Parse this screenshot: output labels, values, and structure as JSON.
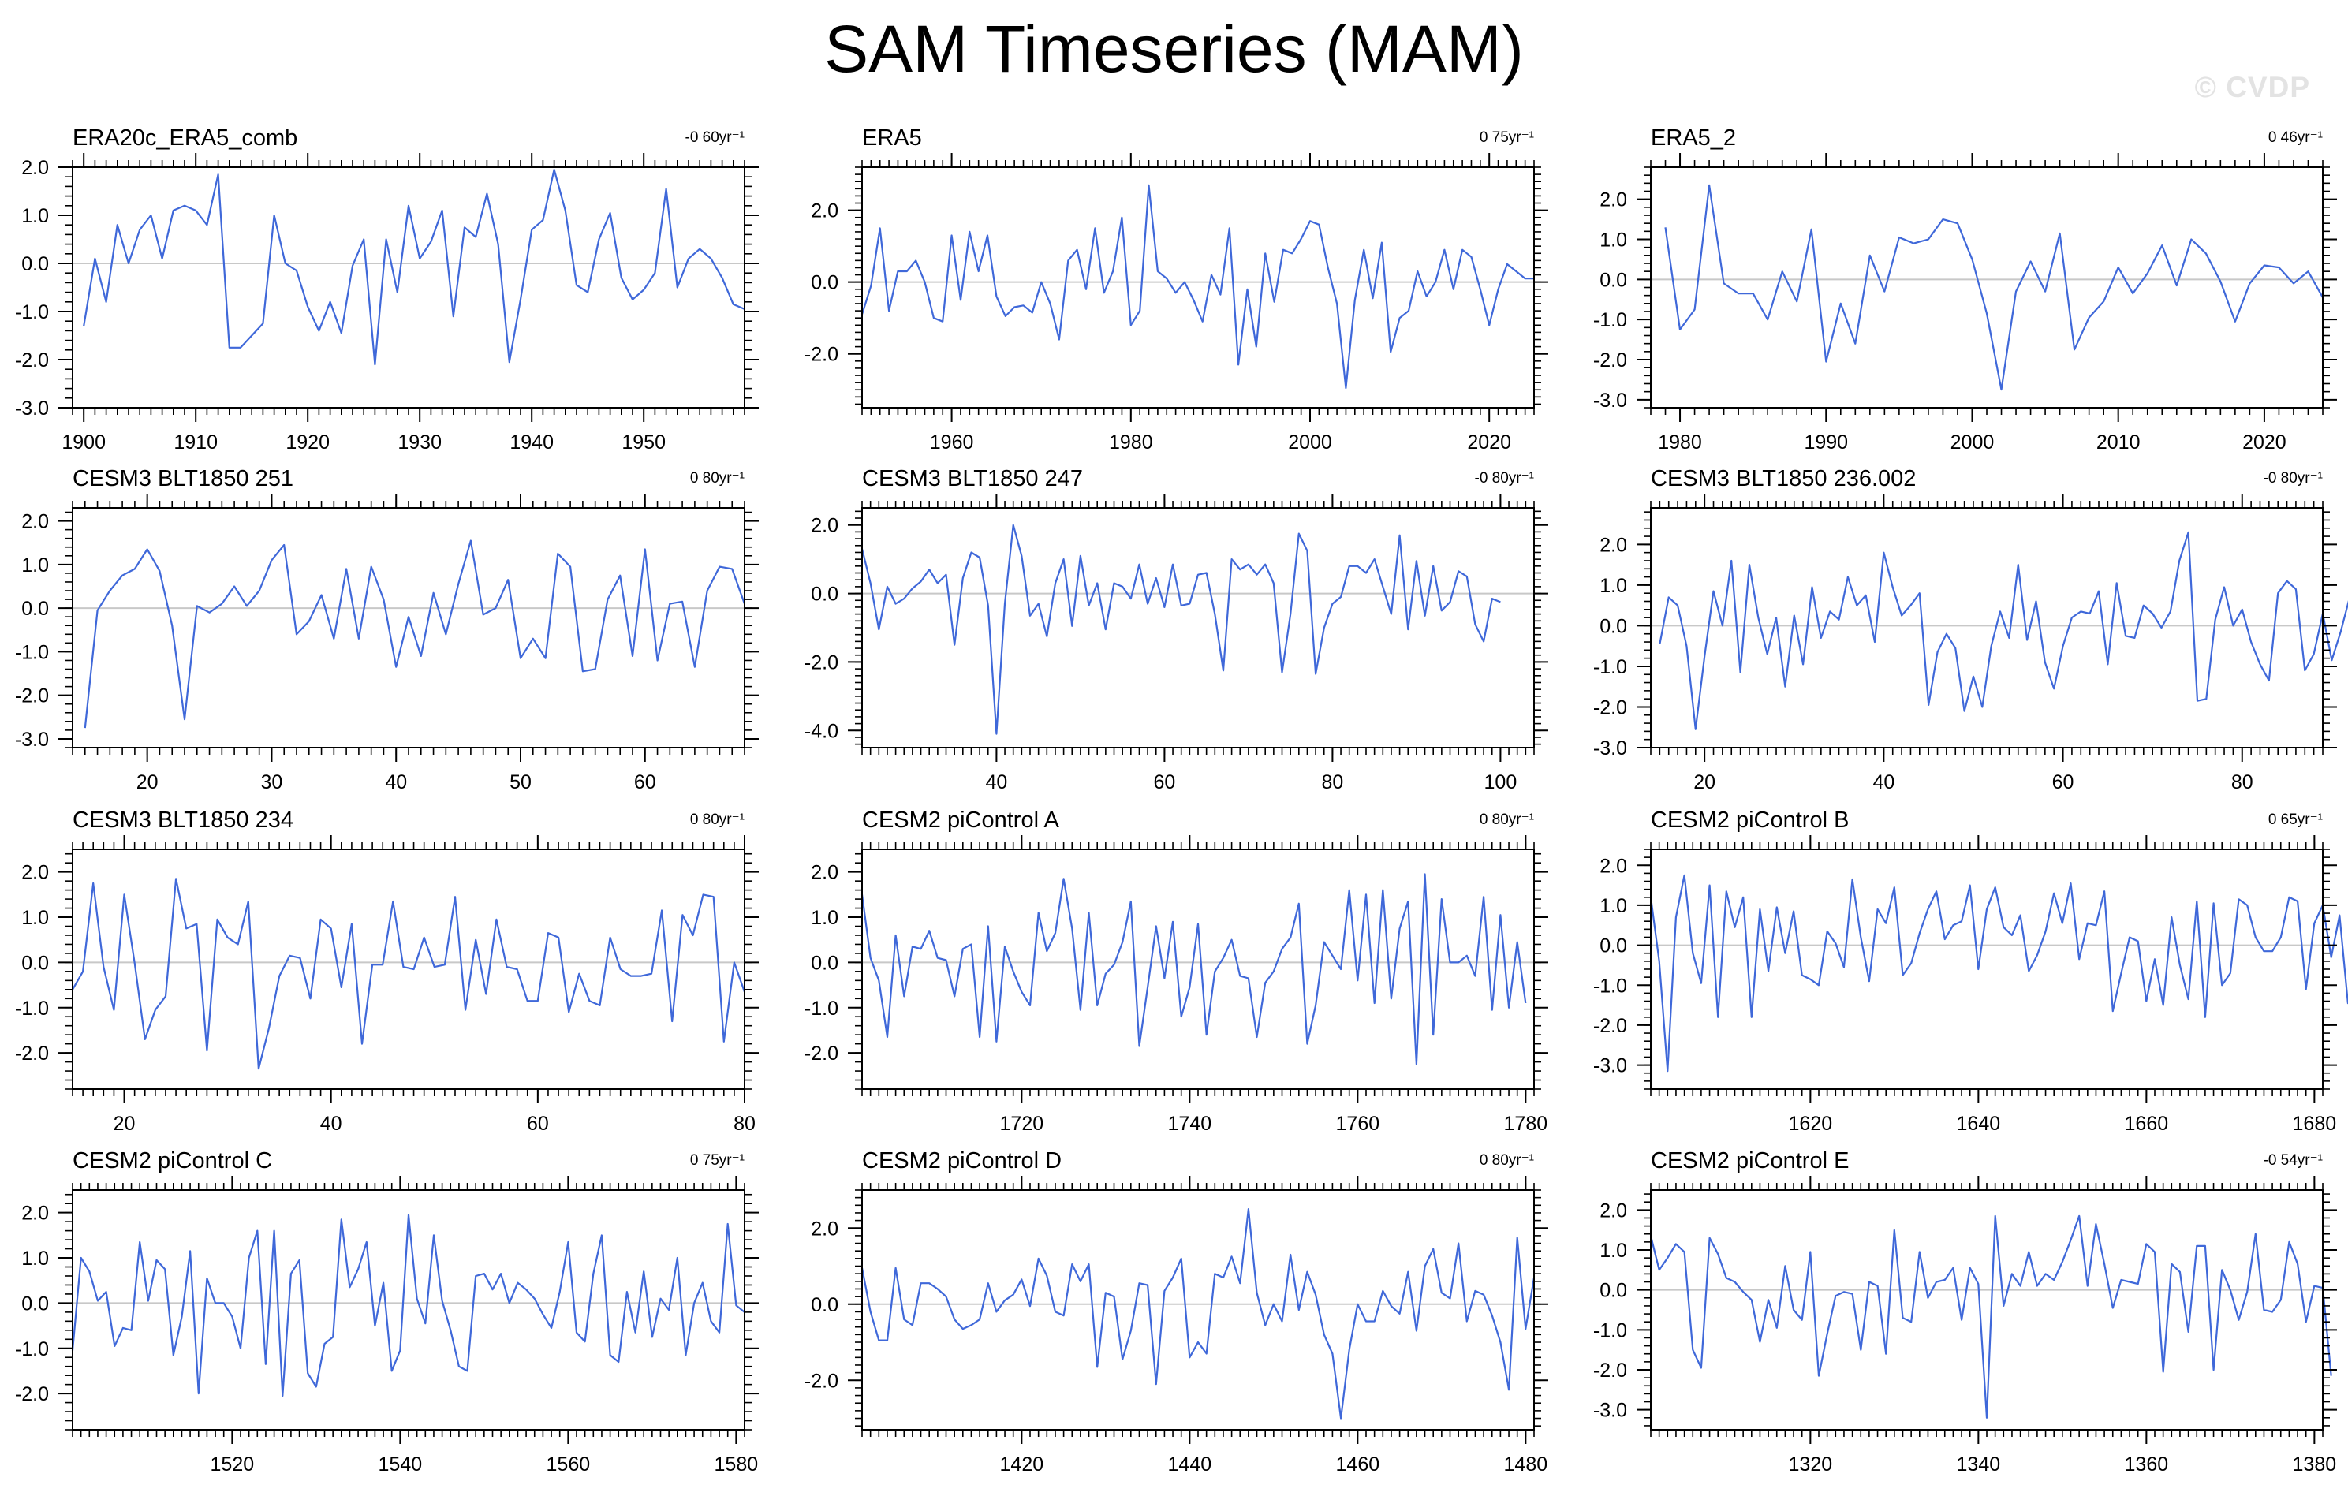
{
  "title": "SAM Timeseries (MAM)",
  "watermark": "© CVDP",
  "style": {
    "line_color": "#3f68d9",
    "zero_line_color": "#c8c8c8",
    "axis_color": "#000000"
  },
  "chart_data": [
    {
      "type": "line",
      "title": "ERA20c_ERA5_comb",
      "trend": "-0 60yr⁻¹",
      "xlim": [
        1899,
        1959
      ],
      "ylim": [
        -3,
        2
      ],
      "xticks": [
        1900,
        1910,
        1920,
        1930,
        1940,
        1950
      ],
      "yticks": [
        2,
        1,
        0,
        -1,
        -2,
        -3
      ],
      "ytick_labels": [
        "2.0",
        "1.0",
        "0.0",
        "-1.0",
        "-2.0",
        "-3.0"
      ],
      "x_start": 1900,
      "values": [
        -1.3,
        0.1,
        -0.8,
        0.8,
        0.0,
        0.7,
        1.0,
        0.1,
        1.1,
        1.2,
        1.1,
        0.8,
        1.85,
        -1.75,
        -1.75,
        -1.5,
        -1.25,
        1.0,
        0.0,
        -0.15,
        -0.9,
        -1.4,
        -0.8,
        -1.45,
        -0.05,
        0.5,
        -2.1,
        0.5,
        -0.6,
        1.2,
        0.1,
        0.45,
        1.1,
        -1.1,
        0.75,
        0.55,
        1.45,
        0.4,
        -2.05,
        -0.75,
        0.7,
        0.9,
        1.95,
        1.1,
        -0.45,
        -0.6,
        0.5,
        1.05,
        -0.3,
        -0.75,
        -0.55,
        -0.2,
        1.55,
        -0.5,
        0.1,
        0.3,
        0.1,
        -0.3,
        -0.85,
        -0.95
      ]
    },
    {
      "type": "line",
      "title": "ERA5",
      "trend": "0 75yr⁻¹",
      "xlim": [
        1950,
        2025
      ],
      "ylim": [
        -3.5,
        3.2
      ],
      "xticks": [
        1960,
        1980,
        2000,
        2020
      ],
      "yticks": [
        2,
        0,
        -2
      ],
      "ytick_labels": [
        "2.0",
        "0.0",
        "-2.0"
      ],
      "x_start": 1950,
      "values": [
        -0.9,
        -0.1,
        1.5,
        -0.8,
        0.3,
        0.3,
        0.6,
        0.0,
        -1.0,
        -1.1,
        1.3,
        -0.5,
        1.4,
        0.3,
        1.3,
        -0.4,
        -0.95,
        -0.7,
        -0.65,
        -0.85,
        0.0,
        -0.6,
        -1.6,
        0.6,
        0.9,
        -0.2,
        1.5,
        -0.3,
        0.3,
        1.8,
        -1.2,
        -0.8,
        2.7,
        0.3,
        0.1,
        -0.3,
        0.0,
        -0.5,
        -1.1,
        0.2,
        -0.35,
        1.5,
        -2.3,
        -0.2,
        -1.8,
        0.8,
        -0.55,
        0.9,
        0.8,
        1.2,
        1.7,
        1.6,
        0.4,
        -0.6,
        -2.95,
        -0.5,
        0.9,
        -0.45,
        1.1,
        -1.95,
        -1.0,
        -0.8,
        0.3,
        -0.4,
        0.0,
        0.9,
        -0.2,
        0.9,
        0.7,
        -0.2,
        -1.2,
        -0.2,
        0.5,
        0.3,
        0.1,
        0.1
      ]
    },
    {
      "type": "line",
      "title": "ERA5_2",
      "trend": "0 46yr⁻¹",
      "xlim": [
        1978,
        2024
      ],
      "ylim": [
        -3.2,
        2.8
      ],
      "xticks": [
        1980,
        1990,
        2000,
        2010,
        2020
      ],
      "yticks": [
        2,
        1,
        0,
        -1,
        -2,
        -3
      ],
      "ytick_labels": [
        "2.0",
        "1.0",
        "0.0",
        "-1.0",
        "-2.0",
        "-3.0"
      ],
      "x_start": 1979,
      "values": [
        1.3,
        -1.25,
        -0.75,
        2.35,
        -0.1,
        -0.35,
        -0.35,
        -1.0,
        0.2,
        -0.55,
        1.25,
        -2.05,
        -0.6,
        -1.6,
        0.6,
        -0.3,
        1.05,
        0.9,
        1.0,
        1.5,
        1.4,
        0.5,
        -0.85,
        -2.75,
        -0.3,
        0.45,
        -0.3,
        1.15,
        -1.75,
        -0.95,
        -0.55,
        0.3,
        -0.35,
        0.15,
        0.85,
        -0.15,
        1.0,
        0.65,
        -0.05,
        -1.05,
        -0.1,
        0.35,
        0.3,
        -0.1,
        0.2,
        -0.45
      ]
    },
    {
      "type": "line",
      "title": "CESM3 BLT1850 251",
      "trend": "0 80yr⁻¹",
      "xlim": [
        14,
        68
      ],
      "ylim": [
        -3.2,
        2.3
      ],
      "xticks": [
        20,
        30,
        40,
        50,
        60
      ],
      "yticks": [
        2,
        1,
        0,
        -1,
        -2,
        -3
      ],
      "ytick_labels": [
        "2.0",
        "1.0",
        "0.0",
        "-1.0",
        "-2.0",
        "-3.0"
      ],
      "x_start": 15,
      "values": [
        -2.75,
        -0.05,
        0.4,
        0.75,
        0.9,
        1.35,
        0.85,
        -0.4,
        -2.55,
        0.05,
        -0.1,
        0.1,
        0.5,
        0.05,
        0.4,
        1.1,
        1.45,
        -0.6,
        -0.3,
        0.3,
        -0.7,
        0.9,
        -0.7,
        0.95,
        0.2,
        -1.35,
        -0.2,
        -1.1,
        0.35,
        -0.6,
        0.55,
        1.55,
        -0.15,
        0.0,
        0.65,
        -1.15,
        -0.7,
        -1.15,
        1.25,
        0.95,
        -1.45,
        -1.4,
        0.2,
        0.75,
        -1.1,
        1.35,
        -1.2,
        0.1,
        0.15,
        -1.35,
        0.4,
        0.95,
        0.9,
        0.1
      ]
    },
    {
      "type": "line",
      "title": "CESM3 BLT1850 247",
      "trend": "-0 80yr⁻¹",
      "xlim": [
        24,
        104
      ],
      "ylim": [
        -4.5,
        2.5
      ],
      "xticks": [
        40,
        60,
        80,
        100
      ],
      "yticks": [
        2,
        0,
        -2,
        -4
      ],
      "ytick_labels": [
        "2.0",
        "0.0",
        "-2.0",
        "-4.0"
      ],
      "x_start": 24,
      "values": [
        1.3,
        0.3,
        -1.05,
        0.2,
        -0.3,
        -0.15,
        0.15,
        0.35,
        0.7,
        0.3,
        0.55,
        -1.5,
        0.45,
        1.2,
        1.05,
        -0.35,
        -4.1,
        -0.3,
        2.0,
        1.1,
        -0.65,
        -0.3,
        -1.25,
        0.3,
        1.0,
        -0.95,
        1.1,
        -0.35,
        0.3,
        -1.05,
        0.3,
        0.2,
        -0.15,
        0.85,
        -0.3,
        0.45,
        -0.4,
        0.85,
        -0.35,
        -0.3,
        0.55,
        0.6,
        -0.6,
        -2.25,
        1.0,
        0.7,
        0.85,
        0.55,
        0.85,
        0.3,
        -2.3,
        -0.6,
        1.75,
        1.25,
        -2.35,
        -1.0,
        -0.3,
        -0.1,
        0.8,
        0.8,
        0.6,
        1.0,
        0.2,
        -0.6,
        1.7,
        -1.05,
        0.95,
        -0.65,
        0.8,
        -0.5,
        -0.25,
        0.65,
        0.5,
        -0.9,
        -1.4,
        -0.15,
        -0.25
      ]
    },
    {
      "type": "line",
      "title": "CESM3 BLT1850 236.002",
      "trend": "-0 80yr⁻¹",
      "xlim": [
        14,
        89
      ],
      "ylim": [
        -3.0,
        2.9
      ],
      "xticks": [
        20,
        40,
        60,
        80
      ],
      "yticks": [
        2,
        1,
        0,
        -1,
        -2,
        -3
      ],
      "ytick_labels": [
        "2.0",
        "1.0",
        "0.0",
        "-1.0",
        "-2.0",
        "-3.0"
      ],
      "x_start": 15,
      "values": [
        -0.45,
        0.7,
        0.5,
        -0.5,
        -2.55,
        -0.75,
        0.85,
        0.0,
        1.6,
        -1.15,
        1.5,
        0.2,
        -0.7,
        0.2,
        -1.5,
        0.25,
        -0.95,
        0.95,
        -0.3,
        0.35,
        0.15,
        1.2,
        0.5,
        0.75,
        -0.4,
        1.8,
        0.95,
        0.25,
        0.5,
        0.8,
        -1.95,
        -0.65,
        -0.2,
        -0.55,
        -2.1,
        -1.25,
        -2.0,
        -0.5,
        0.35,
        -0.3,
        1.5,
        -0.35,
        0.6,
        -0.9,
        -1.55,
        -0.5,
        0.2,
        0.35,
        0.3,
        0.85,
        -0.95,
        1.05,
        -0.25,
        -0.3,
        0.5,
        0.3,
        -0.05,
        0.35,
        1.6,
        2.3,
        -1.85,
        -1.8,
        0.15,
        0.95,
        0.0,
        0.4,
        -0.4,
        -0.95,
        -1.35,
        0.8,
        1.1,
        0.9,
        -1.1,
        -0.7,
        0.3,
        -0.85,
        -0.15,
        0.7
      ]
    },
    {
      "type": "line",
      "title": "CESM3 BLT1850 234",
      "trend": "0 80yr⁻¹",
      "xlim": [
        15,
        80
      ],
      "ylim": [
        -2.8,
        2.5
      ],
      "xticks": [
        20,
        40,
        60,
        80
      ],
      "yticks": [
        2,
        1,
        0,
        -1,
        -2
      ],
      "ytick_labels": [
        "2.0",
        "1.0",
        "0.0",
        "-1.0",
        "-2.0"
      ],
      "x_start": 15,
      "values": [
        -0.6,
        -0.2,
        1.75,
        -0.1,
        -1.05,
        1.5,
        0.0,
        -1.7,
        -1.05,
        -0.75,
        1.85,
        0.75,
        0.85,
        -1.95,
        0.95,
        0.55,
        0.4,
        1.35,
        -2.35,
        -1.45,
        -0.3,
        0.15,
        0.1,
        -0.8,
        0.95,
        0.75,
        -0.55,
        0.85,
        -1.8,
        -0.05,
        -0.05,
        1.35,
        -0.1,
        -0.15,
        0.55,
        -0.1,
        -0.05,
        1.45,
        -1.05,
        0.5,
        -0.7,
        0.95,
        -0.1,
        -0.15,
        -0.85,
        -0.85,
        0.65,
        0.55,
        -1.1,
        -0.25,
        -0.85,
        -0.95,
        0.55,
        -0.15,
        -0.3,
        -0.3,
        -0.25,
        1.15,
        -1.3,
        1.05,
        0.6,
        1.5,
        1.45,
        -1.75,
        0.0,
        -0.65
      ]
    },
    {
      "type": "line",
      "title": "CESM2 piControl A",
      "trend": "0 80yr⁻¹",
      "xlim": [
        1701,
        1781
      ],
      "ylim": [
        -2.8,
        2.5
      ],
      "xticks": [
        1720,
        1740,
        1760,
        1780
      ],
      "yticks": [
        2,
        1,
        0,
        -1,
        -2
      ],
      "ytick_labels": [
        "2.0",
        "1.0",
        "0.0",
        "-1.0",
        "-2.0"
      ],
      "x_start": 1701,
      "values": [
        1.5,
        0.1,
        -0.4,
        -1.65,
        0.6,
        -0.75,
        0.35,
        0.3,
        0.7,
        0.1,
        0.05,
        -0.75,
        0.3,
        0.4,
        -1.65,
        0.8,
        -1.75,
        0.35,
        -0.2,
        -0.65,
        -0.95,
        1.1,
        0.25,
        0.65,
        1.85,
        0.75,
        -1.05,
        1.1,
        -0.95,
        -0.25,
        -0.05,
        0.45,
        1.35,
        -1.85,
        -0.55,
        0.8,
        -0.35,
        0.9,
        -1.2,
        -0.55,
        0.85,
        -1.6,
        -0.2,
        0.1,
        0.5,
        -0.3,
        -0.35,
        -1.65,
        -0.45,
        -0.2,
        0.3,
        0.55,
        1.3,
        -1.8,
        -0.95,
        0.45,
        0.15,
        -0.15,
        1.6,
        -0.4,
        1.5,
        -0.9,
        1.6,
        -0.8,
        0.75,
        1.35,
        -2.25,
        1.95,
        -1.6,
        1.4,
        0.0,
        0.0,
        0.15,
        -0.3,
        1.45,
        -1.05,
        1.05,
        -1.0,
        0.45,
        -0.9
      ]
    },
    {
      "type": "line",
      "title": "CESM2 piControl B",
      "trend": "0 65yr⁻¹",
      "xlim": [
        1601,
        1681
      ],
      "ylim": [
        -3.6,
        2.4
      ],
      "xticks": [
        1620,
        1640,
        1660,
        1680
      ],
      "yticks": [
        2,
        1,
        0,
        -1,
        -2,
        -3
      ],
      "ytick_labels": [
        "2.0",
        "1.0",
        "0.0",
        "-1.0",
        "-2.0",
        "-3.0"
      ],
      "x_start": 1601,
      "values": [
        1.2,
        -0.4,
        -3.15,
        0.7,
        1.75,
        -0.2,
        -0.95,
        1.5,
        -1.8,
        1.35,
        0.45,
        1.2,
        -1.8,
        0.9,
        -0.65,
        0.95,
        -0.2,
        0.85,
        -0.75,
        -0.85,
        -1.0,
        0.35,
        0.05,
        -0.55,
        1.65,
        0.2,
        -0.9,
        0.9,
        0.55,
        1.45,
        -0.75,
        -0.45,
        0.3,
        0.9,
        1.35,
        0.15,
        0.5,
        0.6,
        1.5,
        -0.6,
        0.9,
        1.45,
        0.45,
        0.25,
        0.75,
        -0.65,
        -0.25,
        0.35,
        1.3,
        0.55,
        1.55,
        -0.35,
        0.55,
        0.5,
        1.35,
        -1.65,
        -0.7,
        0.2,
        0.1,
        -1.4,
        -0.35,
        -1.5,
        0.7,
        -0.5,
        -1.35,
        1.1,
        -1.8,
        1.05,
        -1.0,
        -0.7,
        1.15,
        1.0,
        0.2,
        -0.15,
        -0.15,
        0.2,
        1.2,
        1.1,
        -1.1,
        0.55,
        1.0,
        -0.3,
        0.75,
        -1.45,
        0.3
      ]
    },
    {
      "type": "line",
      "title": "CESM2 piControl C",
      "trend": "0 75yr⁻¹",
      "xlim": [
        1501,
        1581
      ],
      "ylim": [
        -2.8,
        2.5
      ],
      "xticks": [
        1520,
        1540,
        1560,
        1580
      ],
      "yticks": [
        2,
        1,
        0,
        -1,
        -2
      ],
      "ytick_labels": [
        "2.0",
        "1.0",
        "0.0",
        "-1.0",
        "-2.0"
      ],
      "x_start": 1501,
      "values": [
        -1.05,
        1.0,
        0.7,
        0.05,
        0.25,
        -0.95,
        -0.55,
        -0.6,
        1.35,
        0.05,
        0.95,
        0.75,
        -1.15,
        -0.3,
        1.15,
        -2.0,
        0.55,
        0.0,
        0.0,
        -0.3,
        -1.0,
        1.0,
        1.6,
        -1.35,
        1.6,
        -2.05,
        0.65,
        0.95,
        -1.55,
        -1.85,
        -0.9,
        -0.75,
        1.85,
        0.35,
        0.75,
        1.35,
        -0.5,
        0.45,
        -1.5,
        -1.05,
        1.95,
        0.1,
        -0.45,
        1.5,
        0.05,
        -0.6,
        -1.4,
        -1.5,
        0.6,
        0.65,
        0.3,
        0.65,
        0.0,
        0.45,
        0.3,
        0.1,
        -0.25,
        -0.55,
        0.25,
        1.35,
        -0.65,
        -0.85,
        0.65,
        1.5,
        -1.15,
        -1.3,
        0.25,
        -0.65,
        0.7,
        -0.75,
        0.1,
        -0.15,
        1.0,
        -1.15,
        0.0,
        0.45,
        -0.4,
        -0.65,
        1.75,
        -0.05,
        -0.2
      ]
    },
    {
      "type": "line",
      "title": "CESM2 piControl D",
      "trend": "0 80yr⁻¹",
      "xlim": [
        1401,
        1481
      ],
      "ylim": [
        -3.3,
        3.0
      ],
      "xticks": [
        1420,
        1440,
        1460,
        1480
      ],
      "yticks": [
        2,
        0,
        -2
      ],
      "ytick_labels": [
        "2.0",
        "0.0",
        "-2.0"
      ],
      "x_start": 1401,
      "values": [
        0.95,
        -0.2,
        -0.95,
        -0.95,
        0.95,
        -0.4,
        -0.55,
        0.55,
        0.55,
        0.4,
        0.2,
        -0.4,
        -0.65,
        -0.55,
        -0.4,
        0.55,
        -0.2,
        0.1,
        0.25,
        0.65,
        -0.05,
        1.2,
        0.75,
        -0.2,
        -0.3,
        1.05,
        0.6,
        1.05,
        -1.65,
        0.3,
        0.2,
        -1.45,
        -0.7,
        0.55,
        0.5,
        -2.1,
        0.35,
        0.7,
        1.2,
        -1.4,
        -1.0,
        -1.3,
        0.8,
        0.7,
        1.25,
        0.55,
        2.5,
        0.3,
        -0.55,
        0.0,
        -0.45,
        1.3,
        -0.15,
        0.85,
        0.25,
        -0.8,
        -1.3,
        -3.0,
        -1.2,
        0.0,
        -0.45,
        -0.45,
        0.35,
        -0.05,
        -0.25,
        0.85,
        -0.7,
        1.0,
        1.45,
        0.3,
        0.15,
        1.6,
        -0.45,
        0.35,
        0.25,
        -0.3,
        -1.0,
        -2.25,
        1.75,
        -0.65,
        0.7
      ]
    },
    {
      "type": "line",
      "title": "CESM2 piControl E",
      "trend": "-0 54yr⁻¹",
      "xlim": [
        1301,
        1381
      ],
      "ylim": [
        -3.5,
        2.5
      ],
      "xticks": [
        1320,
        1340,
        1360,
        1380
      ],
      "yticks": [
        2,
        1,
        0,
        -1,
        -2,
        -3
      ],
      "ytick_labels": [
        "2.0",
        "1.0",
        "0.0",
        "-1.0",
        "-2.0",
        "-3.0"
      ],
      "x_start": 1301,
      "values": [
        1.35,
        0.5,
        0.8,
        1.15,
        0.95,
        -1.5,
        -1.95,
        1.3,
        0.9,
        0.3,
        0.2,
        -0.05,
        -0.25,
        -1.3,
        -0.25,
        -0.95,
        0.6,
        -0.5,
        -0.75,
        0.95,
        -2.15,
        -1.1,
        -0.15,
        -0.05,
        -0.1,
        -1.5,
        0.2,
        0.1,
        -1.6,
        1.5,
        -0.7,
        -0.8,
        0.95,
        -0.2,
        0.2,
        0.25,
        0.55,
        -0.75,
        0.55,
        0.15,
        -3.2,
        1.85,
        -0.4,
        0.4,
        0.1,
        0.95,
        0.1,
        0.4,
        0.25,
        0.7,
        1.25,
        1.85,
        0.1,
        1.65,
        0.65,
        -0.45,
        0.25,
        0.2,
        0.15,
        1.15,
        0.95,
        -2.05,
        0.65,
        0.45,
        -1.05,
        1.1,
        1.1,
        -2.0,
        0.5,
        0.0,
        -0.75,
        -0.05,
        1.4,
        -0.5,
        -0.55,
        -0.25,
        1.2,
        0.65,
        -0.8,
        0.1,
        0.05,
        -2.15
      ]
    }
  ]
}
